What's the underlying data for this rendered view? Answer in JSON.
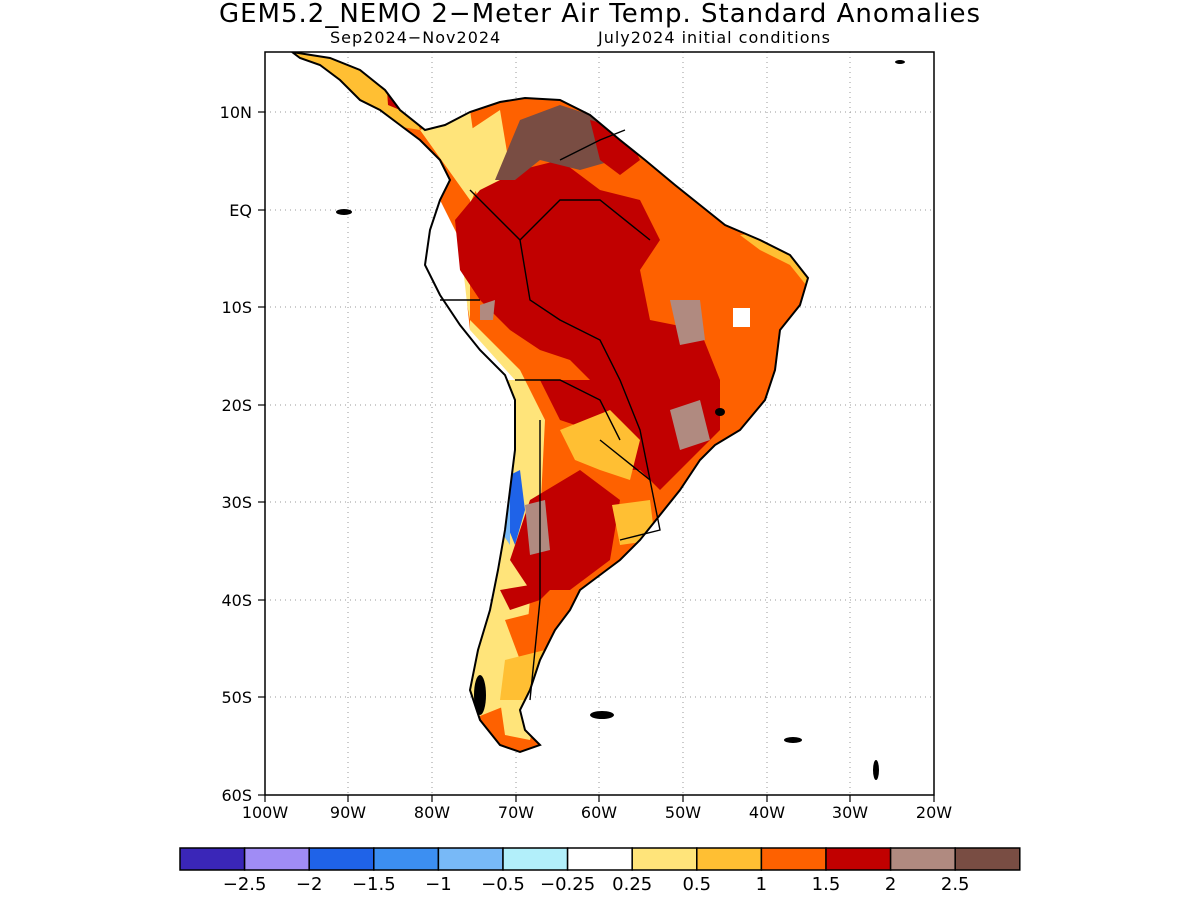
{
  "title": "GEM5.2_NEMO 2−Meter Air Temp. Standard Anomalies",
  "subtitle_left": "Sep2024−Nov2024",
  "subtitle_right": "July2024 initial conditions",
  "lat_labels": [
    "10N",
    "EQ",
    "10S",
    "20S",
    "30S",
    "40S",
    "50S",
    "60S"
  ],
  "lon_labels": [
    "100W",
    "90W",
    "80W",
    "70W",
    "60W",
    "50W",
    "40W",
    "30W",
    "20W"
  ],
  "colorbar": {
    "colors": [
      "#3a26b8",
      "#a08cf5",
      "#1f63e8",
      "#3c8ff2",
      "#78b9f7",
      "#b2effa",
      "#ffffff",
      "#ffe47a",
      "#ffbf33",
      "#fe6100",
      "#c10000",
      "#b08a80",
      "#794d43"
    ],
    "labels": [
      "−2.5",
      "−2",
      "−1.5",
      "−1",
      "−0.5",
      "−0.25",
      "0.25",
      "0.5",
      "1",
      "1.5",
      "2",
      "2.5"
    ]
  }
}
